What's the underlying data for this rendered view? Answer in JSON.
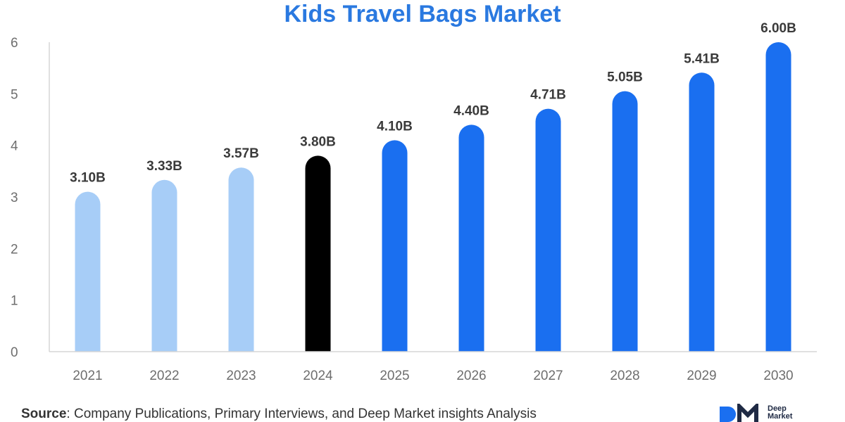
{
  "chart_data": {
    "type": "bar",
    "title": "Kids Travel Bags Market",
    "categories": [
      "2021",
      "2022",
      "2023",
      "2024",
      "2025",
      "2026",
      "2027",
      "2028",
      "2029",
      "2030"
    ],
    "values": [
      3.1,
      3.33,
      3.57,
      3.8,
      4.1,
      4.4,
      4.71,
      5.05,
      5.41,
      6.0
    ],
    "data_labels": [
      "3.10B",
      "3.33B",
      "3.57B",
      "3.80B",
      "4.10B",
      "4.40B",
      "4.71B",
      "5.05B",
      "5.41B",
      "6.00B"
    ],
    "bar_colors": [
      "#a7cdf7",
      "#a7cdf7",
      "#a7cdf7",
      "#000000",
      "#1a6ff0",
      "#1a6ff0",
      "#1a6ff0",
      "#1a6ff0",
      "#1a6ff0",
      "#1a6ff0"
    ],
    "ylim": [
      0,
      6
    ],
    "yticks": [
      "0",
      "1",
      "2",
      "3",
      "4",
      "5",
      "6"
    ],
    "xlabel": "",
    "ylabel": "",
    "grid": false
  },
  "colors": {
    "title": "#2a79e0",
    "axis": "#d5d5d5"
  },
  "source": {
    "label": "Source",
    "text": ": Company Publications, Primary Interviews, and Deep Market insights Analysis"
  },
  "brand": {
    "logo_icon": "dmi-logo-icon",
    "line1": "Deep",
    "line2": "Market"
  }
}
